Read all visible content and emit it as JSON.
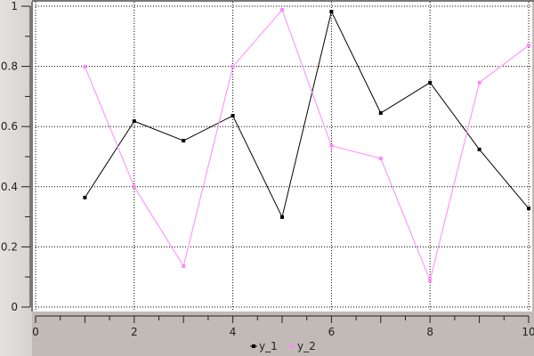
{
  "chart_data": {
    "type": "line",
    "title": "",
    "xlabel": "",
    "ylabel": "",
    "xlim": [
      0,
      10
    ],
    "ylim": [
      0,
      1
    ],
    "x_ticks": [
      "0",
      "2",
      "4",
      "6",
      "8",
      "10"
    ],
    "y_ticks": [
      "0",
      "0.2",
      "0.4",
      "0.6",
      "0.8",
      "1"
    ],
    "grid": true,
    "legend_position": "bottom",
    "x": [
      1,
      2,
      3,
      4,
      5,
      6,
      7,
      8,
      9,
      10
    ],
    "series": [
      {
        "name": "y_1",
        "color": "#000000",
        "values": [
          0.364,
          0.618,
          0.553,
          0.636,
          0.299,
          0.982,
          0.645,
          0.746,
          0.524,
          0.328
        ]
      },
      {
        "name": "y_2",
        "color": "#ff88ff",
        "values": [
          0.799,
          0.4,
          0.136,
          0.799,
          0.988,
          0.536,
          0.494,
          0.089,
          0.746,
          0.87
        ]
      }
    ]
  }
}
